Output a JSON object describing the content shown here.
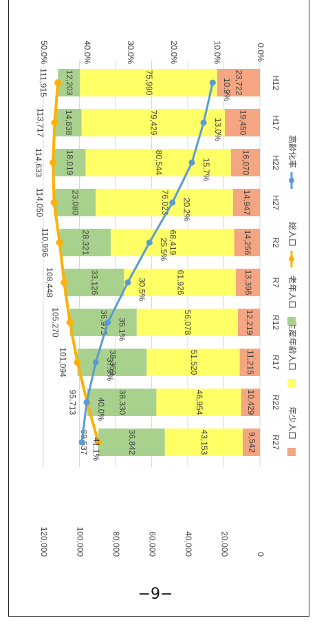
{
  "page": {
    "number": "−9−"
  },
  "chart_data": {
    "type": "bar",
    "stacked": true,
    "rotated": "90deg-clockwise",
    "categories": [
      "H12",
      "H17",
      "H22",
      "H27",
      "R2",
      "R7",
      "R12",
      "R17",
      "R22",
      "R27"
    ],
    "series": [
      {
        "name": "年少人口",
        "kind": "bar",
        "axis": "left",
        "color": "#F4A582",
        "values": [
          23722,
          19450,
          16070,
          14947,
          14256,
          13396,
          12219,
          11215,
          10429,
          9542
        ],
        "labels": [
          "23,722",
          "19,450",
          "16,070",
          "14,947",
          "14,256",
          "13,396",
          "12,219",
          "11,215",
          "10,429",
          "9,542"
        ]
      },
      {
        "name": "生産年齢人口",
        "kind": "bar",
        "axis": "left",
        "color": "#FFFF66",
        "values": [
          75990,
          79429,
          80544,
          76023,
          68419,
          61926,
          56078,
          51520,
          46954,
          43153
        ],
        "labels": [
          "75,990",
          "79,429",
          "80,544",
          "76,023",
          "68,419",
          "61,926",
          "56,078",
          "51,520",
          "46,954",
          "43,153"
        ]
      },
      {
        "name": "老年人口",
        "kind": "bar",
        "axis": "left",
        "color": "#A9D18E",
        "values": [
          12203,
          14838,
          18019,
          23080,
          28321,
          33126,
          36973,
          38359,
          38330,
          36842
        ],
        "labels": [
          "12,203",
          "14,838",
          "18,019",
          "23,080",
          "28,321",
          "33,126",
          "36,973",
          "38,359",
          "38,330",
          "36,842"
        ]
      },
      {
        "name": "総人口",
        "kind": "line",
        "axis": "left",
        "color": "#FFB000",
        "values": [
          111915,
          113717,
          114633,
          114050,
          110996,
          108448,
          105270,
          101094,
          95713,
          89537
        ],
        "labels": [
          "111,915",
          "113,717",
          "114,633",
          "114,050",
          "110,996",
          "108,448",
          "105,270",
          "101,094",
          "95,713",
          "89,537"
        ]
      },
      {
        "name": "高齢化率",
        "kind": "line",
        "axis": "right",
        "color": "#5B9BD5",
        "values": [
          10.9,
          13.0,
          15.7,
          20.2,
          25.5,
          30.5,
          35.1,
          37.9,
          40.0,
          41.1
        ],
        "labels": [
          "10.9%",
          "13.0%",
          "15.7%",
          "20.2%",
          "25.5%",
          "30.5%",
          "35.1%",
          "37.9%",
          "40.0%",
          "41.1%"
        ]
      }
    ],
    "left_axis": {
      "min": 0,
      "max": 120000,
      "ticks": [
        "0",
        "20,000",
        "40,000",
        "60,000",
        "80,000",
        "100,000",
        "120,000"
      ]
    },
    "right_axis": {
      "min": 0,
      "max": 50,
      "ticks": [
        "0.0%",
        "10.0%",
        "20.0%",
        "30.0%",
        "40.0%",
        "50.0%"
      ]
    },
    "legend": {
      "position": "bottom",
      "items": [
        {
          "label": "年少人口",
          "color": "#F4A582",
          "marker": "box"
        },
        {
          "label": "生産年齢人口",
          "color": "#FFFF66",
          "marker": "box"
        },
        {
          "label": "老年人口",
          "color": "#A9D18E",
          "marker": "box"
        },
        {
          "label": "総人口",
          "color": "#FFB000",
          "marker": "line"
        },
        {
          "label": "高齢化率",
          "color": "#5B9BD5",
          "marker": "line"
        }
      ]
    },
    "grid": true
  }
}
